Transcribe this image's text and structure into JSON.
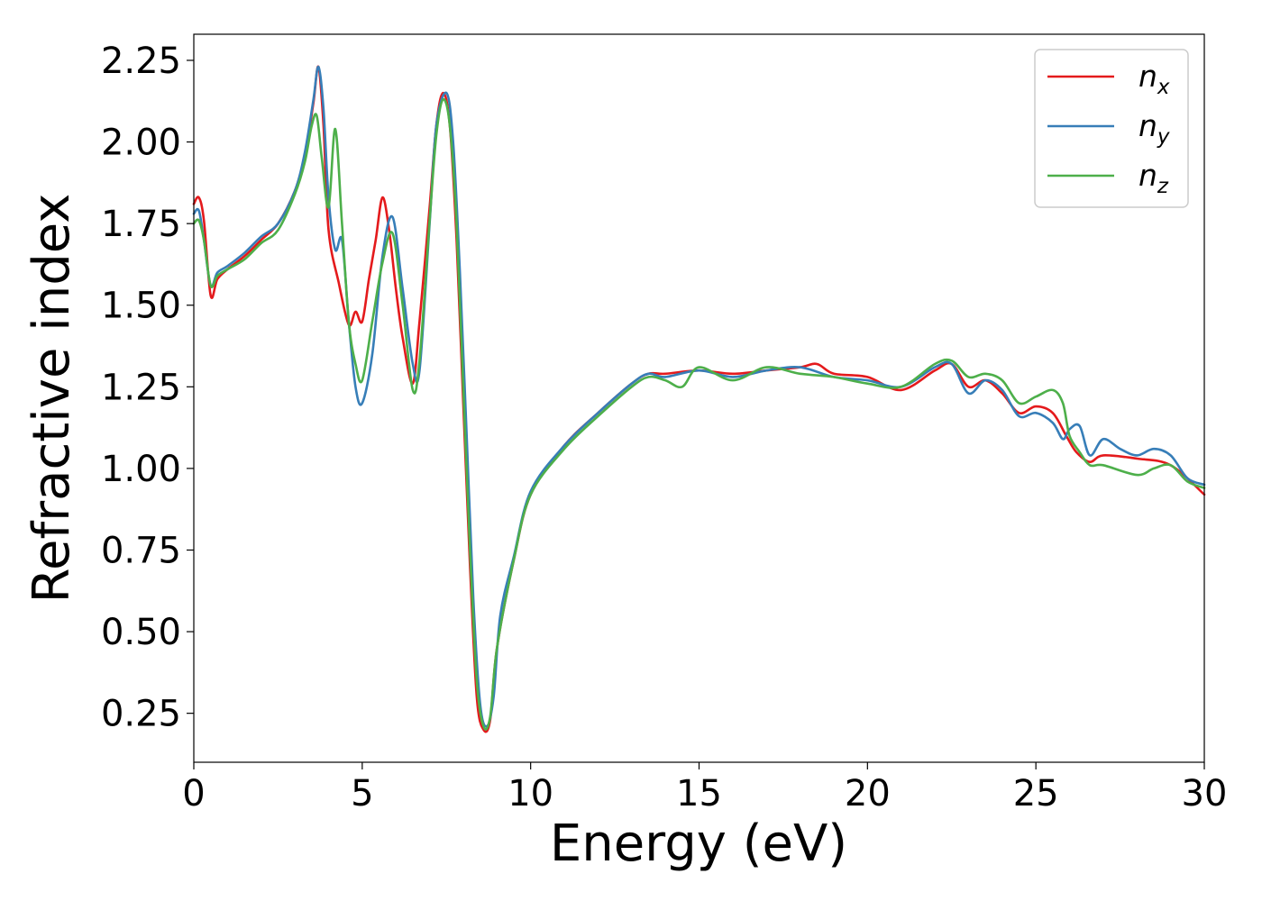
{
  "chart_data": {
    "type": "line",
    "xlabel": "Energy (eV)",
    "ylabel": "Refractive index",
    "xlim": [
      0,
      30
    ],
    "ylim": [
      0.1,
      2.33
    ],
    "x_ticks": [
      "0",
      "5",
      "10",
      "15",
      "20",
      "25",
      "30"
    ],
    "y_ticks": [
      "0.25",
      "0.50",
      "0.75",
      "1.00",
      "1.25",
      "1.50",
      "1.75",
      "2.00",
      "2.25"
    ],
    "grid": false,
    "legend_position": "top-right",
    "series": [
      {
        "name": "n_x",
        "label_base": "n",
        "label_sub": "x",
        "color": "#e41a1c",
        "x": [
          0,
          0.15,
          0.3,
          0.5,
          0.7,
          1.0,
          1.5,
          2.0,
          2.5,
          3.0,
          3.3,
          3.55,
          3.7,
          3.85,
          4.0,
          4.3,
          4.6,
          4.8,
          5.0,
          5.2,
          5.4,
          5.6,
          5.8,
          6.0,
          6.2,
          6.5,
          6.7,
          7.0,
          7.2,
          7.4,
          7.6,
          7.8,
          8.0,
          8.2,
          8.4,
          8.6,
          8.8,
          9.0,
          9.5,
          10,
          11,
          12,
          13,
          13.5,
          14,
          15,
          16,
          17,
          18,
          18.5,
          19,
          20,
          21,
          22,
          22.5,
          23,
          23.5,
          24,
          24.5,
          25,
          25.5,
          25.9,
          26.2,
          26.6,
          27,
          28,
          29,
          30
        ],
        "y": [
          1.81,
          1.83,
          1.76,
          1.53,
          1.58,
          1.61,
          1.65,
          1.7,
          1.75,
          1.85,
          1.96,
          2.12,
          2.23,
          2.05,
          1.73,
          1.57,
          1.44,
          1.48,
          1.45,
          1.58,
          1.7,
          1.83,
          1.73,
          1.55,
          1.4,
          1.26,
          1.45,
          1.8,
          2.05,
          2.15,
          2.05,
          1.7,
          1.2,
          0.7,
          0.3,
          0.2,
          0.23,
          0.45,
          0.72,
          0.92,
          1.07,
          1.17,
          1.26,
          1.29,
          1.29,
          1.3,
          1.29,
          1.3,
          1.31,
          1.32,
          1.29,
          1.28,
          1.24,
          1.3,
          1.32,
          1.25,
          1.27,
          1.23,
          1.17,
          1.19,
          1.17,
          1.1,
          1.05,
          1.02,
          1.04,
          1.03,
          1.01,
          0.92
        ]
      },
      {
        "name": "n_y",
        "label_base": "n",
        "label_sub": "y",
        "color": "#377eb8",
        "x": [
          0,
          0.15,
          0.3,
          0.5,
          0.7,
          1.0,
          1.5,
          2.0,
          2.5,
          3.0,
          3.3,
          3.55,
          3.7,
          3.85,
          4.0,
          4.2,
          4.4,
          4.6,
          4.8,
          5.0,
          5.3,
          5.6,
          5.9,
          6.2,
          6.5,
          6.7,
          7.0,
          7.2,
          7.5,
          7.7,
          7.9,
          8.1,
          8.3,
          8.5,
          8.7,
          8.9,
          9.1,
          9.5,
          10,
          11,
          12,
          13,
          13.5,
          14,
          15,
          16,
          17,
          18,
          19,
          20,
          21,
          22,
          22.5,
          23,
          23.5,
          24,
          24.5,
          25,
          25.5,
          25.8,
          26.0,
          26.3,
          26.6,
          27,
          27.5,
          28,
          28.5,
          29,
          29.5,
          30
        ],
        "y": [
          1.78,
          1.79,
          1.7,
          1.56,
          1.6,
          1.62,
          1.66,
          1.71,
          1.75,
          1.85,
          1.97,
          2.13,
          2.23,
          2.1,
          1.83,
          1.67,
          1.7,
          1.45,
          1.25,
          1.2,
          1.35,
          1.65,
          1.77,
          1.55,
          1.32,
          1.3,
          1.75,
          2.05,
          2.15,
          2.0,
          1.6,
          1.1,
          0.6,
          0.28,
          0.21,
          0.3,
          0.55,
          0.73,
          0.93,
          1.07,
          1.17,
          1.26,
          1.29,
          1.28,
          1.3,
          1.28,
          1.3,
          1.31,
          1.28,
          1.27,
          1.25,
          1.31,
          1.32,
          1.23,
          1.27,
          1.24,
          1.16,
          1.17,
          1.14,
          1.09,
          1.12,
          1.13,
          1.04,
          1.09,
          1.06,
          1.04,
          1.06,
          1.04,
          0.97,
          0.95
        ]
      },
      {
        "name": "n_z",
        "label_base": "n",
        "label_sub": "z",
        "color": "#4daf4a",
        "x": [
          0,
          0.15,
          0.3,
          0.5,
          0.7,
          1.0,
          1.5,
          2.0,
          2.5,
          3.0,
          3.3,
          3.5,
          3.65,
          3.8,
          4.0,
          4.2,
          4.4,
          4.6,
          4.8,
          5.0,
          5.3,
          5.6,
          5.9,
          6.2,
          6.5,
          6.7,
          7.0,
          7.2,
          7.4,
          7.6,
          7.8,
          8.0,
          8.2,
          8.4,
          8.6,
          8.8,
          9.0,
          9.5,
          10,
          11,
          12,
          13,
          13.5,
          14,
          14.5,
          15,
          16,
          17,
          18,
          19,
          20,
          21,
          22,
          22.5,
          23,
          23.5,
          24,
          24.5,
          25,
          25.5,
          25.8,
          26.0,
          26.3,
          26.6,
          27,
          28,
          28.5,
          29,
          29.5,
          30
        ],
        "y": [
          1.75,
          1.76,
          1.7,
          1.56,
          1.59,
          1.61,
          1.64,
          1.69,
          1.73,
          1.84,
          1.94,
          2.05,
          2.08,
          1.95,
          1.8,
          2.04,
          1.75,
          1.45,
          1.32,
          1.27,
          1.45,
          1.63,
          1.72,
          1.5,
          1.24,
          1.33,
          1.76,
          2.02,
          2.13,
          2.05,
          1.75,
          1.25,
          0.75,
          0.35,
          0.21,
          0.24,
          0.45,
          0.72,
          0.92,
          1.06,
          1.16,
          1.25,
          1.28,
          1.27,
          1.25,
          1.31,
          1.27,
          1.31,
          1.29,
          1.28,
          1.26,
          1.25,
          1.32,
          1.33,
          1.28,
          1.29,
          1.27,
          1.2,
          1.22,
          1.24,
          1.2,
          1.1,
          1.05,
          1.01,
          1.01,
          0.98,
          1.0,
          1.01,
          0.96,
          0.94
        ]
      }
    ]
  }
}
